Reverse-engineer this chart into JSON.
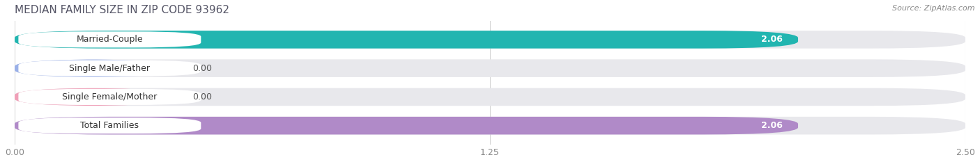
{
  "title": "MEDIAN FAMILY SIZE IN ZIP CODE 93962",
  "source": "Source: ZipAtlas.com",
  "categories": [
    "Married-Couple",
    "Single Male/Father",
    "Single Female/Mother",
    "Total Families"
  ],
  "values": [
    2.06,
    0.0,
    0.0,
    2.06
  ],
  "bar_colors": [
    "#22b5b0",
    "#9ab0e8",
    "#f0a0b8",
    "#b08ac8"
  ],
  "bar_bg_color": "#e8e8ec",
  "label_bg_color": "#ffffff",
  "xlim_max": 2.5,
  "xticks": [
    0.0,
    1.25,
    2.5
  ],
  "xtick_labels": [
    "0.00",
    "1.25",
    "2.50"
  ],
  "title_fontsize": 11,
  "source_fontsize": 8,
  "tick_fontsize": 9,
  "cat_label_fontsize": 9,
  "val_label_fontsize": 9,
  "figsize": [
    14.06,
    2.33
  ],
  "dpi": 100,
  "bg_color": "#ffffff",
  "grid_color": "#d8d8d8",
  "title_color": "#555566",
  "source_color": "#888888",
  "tick_color": "#888888",
  "cat_label_color": "#333333",
  "val_label_inside_color": "#ffffff",
  "val_label_outside_color": "#555555"
}
